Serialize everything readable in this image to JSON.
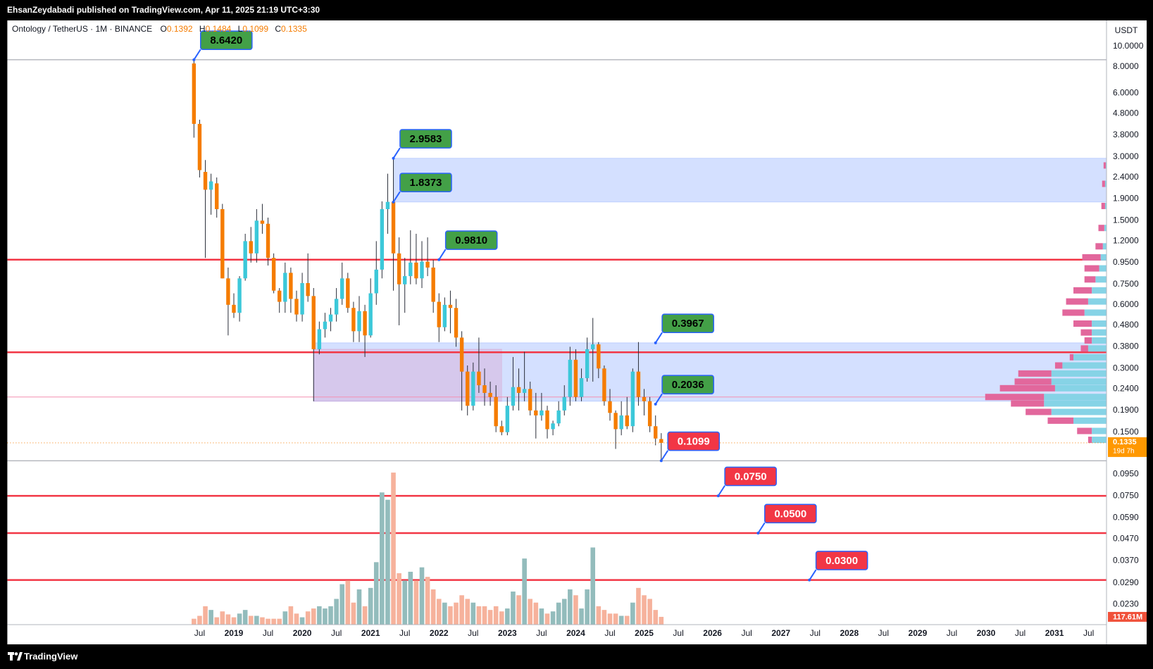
{
  "header": {
    "publisher": "EhsanZeydabadi published on TradingView.com, Apr 11, 2025 21:19 UTC+3:30"
  },
  "footer": {
    "brand": "TradingView"
  },
  "chart_data": {
    "type": "candlestick",
    "title": "Ontology / TetherUS · 1M · BINANCE",
    "ohlc_labels": [
      "O",
      "H",
      "L",
      "C"
    ],
    "currency": "USDT",
    "countdown": "19d 7h",
    "log_scale": true,
    "grid": false,
    "up_color": "#3cc8d9",
    "down_color": "#f57c00",
    "wick_color": "#2a2e39",
    "x": [
      "2018-06",
      "2018-07",
      "2018-08",
      "2018-09",
      "2018-10",
      "2018-11",
      "2018-12",
      "2019-01",
      "2019-02",
      "2019-03",
      "2019-04",
      "2019-05",
      "2019-06",
      "2019-07",
      "2019-08",
      "2019-09",
      "2019-10",
      "2019-11",
      "2019-12",
      "2020-01",
      "2020-02",
      "2020-03",
      "2020-04",
      "2020-05",
      "2020-06",
      "2020-07",
      "2020-08",
      "2020-09",
      "2020-10",
      "2020-11",
      "2020-12",
      "2021-01",
      "2021-02",
      "2021-03",
      "2021-04",
      "2021-05",
      "2021-06",
      "2021-07",
      "2021-08",
      "2021-09",
      "2021-10",
      "2021-11",
      "2021-12",
      "2022-01",
      "2022-02",
      "2022-03",
      "2022-04",
      "2022-05",
      "2022-06",
      "2022-07",
      "2022-08",
      "2022-09",
      "2022-10",
      "2022-11",
      "2022-12",
      "2023-01",
      "2023-02",
      "2023-03",
      "2023-04",
      "2023-05",
      "2023-06",
      "2023-07",
      "2023-08",
      "2023-09",
      "2023-10",
      "2023-11",
      "2023-12",
      "2024-01",
      "2024-02",
      "2024-03",
      "2024-04",
      "2024-05",
      "2024-06",
      "2024-07",
      "2024-08",
      "2024-09",
      "2024-10",
      "2024-11",
      "2024-12",
      "2025-01",
      "2025-02",
      "2025-03",
      "2025-04"
    ],
    "open": [
      8.3,
      4.3,
      2.55,
      2.1,
      2.25,
      1.7,
      0.8,
      0.6,
      0.55,
      0.8,
      1.2,
      1.05,
      1.5,
      1.45,
      1.0,
      0.7,
      0.62,
      0.85,
      0.64,
      0.54,
      0.76,
      0.66,
      0.37,
      0.46,
      0.5,
      0.54,
      0.64,
      0.8,
      0.58,
      0.45,
      0.56,
      0.43,
      0.68,
      0.88,
      1.7,
      1.84,
      1.05,
      0.75,
      0.82,
      0.95,
      0.8,
      0.96,
      0.9,
      0.62,
      0.47,
      0.6,
      0.58,
      0.42,
      0.29,
      0.2,
      0.29,
      0.25,
      0.23,
      0.22,
      0.16,
      0.15,
      0.2,
      0.245,
      0.23,
      0.24,
      0.19,
      0.18,
      0.19,
      0.155,
      0.165,
      0.19,
      0.22,
      0.33,
      0.22,
      0.27,
      0.37,
      0.39,
      0.3,
      0.21,
      0.185,
      0.155,
      0.18,
      0.16,
      0.29,
      0.22,
      0.21,
      0.16,
      0.1392
    ],
    "high": [
      8.642,
      4.5,
      2.9,
      2.5,
      2.4,
      1.8,
      0.9,
      0.68,
      0.82,
      1.3,
      1.4,
      1.7,
      1.8,
      1.55,
      1.05,
      0.72,
      0.95,
      0.9,
      0.7,
      0.85,
      1.05,
      0.72,
      0.5,
      0.55,
      0.58,
      0.72,
      0.95,
      0.85,
      0.62,
      0.66,
      0.6,
      0.8,
      1.2,
      1.85,
      2.5,
      2.9583,
      1.25,
      1.0,
      1.35,
      1.3,
      1.2,
      1.25,
      0.98,
      0.68,
      0.65,
      0.7,
      0.64,
      0.45,
      0.31,
      0.32,
      0.42,
      0.3,
      0.26,
      0.25,
      0.17,
      0.22,
      0.34,
      0.3,
      0.36,
      0.26,
      0.23,
      0.23,
      0.2,
      0.17,
      0.21,
      0.25,
      0.38,
      0.37,
      0.3,
      0.42,
      0.52,
      0.4,
      0.31,
      0.24,
      0.19,
      0.21,
      0.22,
      0.3,
      0.4,
      0.24,
      0.22,
      0.18,
      0.1484
    ],
    "low": [
      3.7,
      2.4,
      1.0,
      1.6,
      1.55,
      0.8,
      0.43,
      0.52,
      0.5,
      0.78,
      0.95,
      0.95,
      1.3,
      0.92,
      0.68,
      0.55,
      0.55,
      0.55,
      0.5,
      0.5,
      0.62,
      0.21,
      0.35,
      0.42,
      0.45,
      0.5,
      0.6,
      0.55,
      0.4,
      0.4,
      0.34,
      0.42,
      0.6,
      0.8,
      1.3,
      0.7,
      0.48,
      0.55,
      0.75,
      0.75,
      0.72,
      0.82,
      0.55,
      0.4,
      0.45,
      0.44,
      0.38,
      0.19,
      0.18,
      0.19,
      0.23,
      0.2,
      0.2,
      0.15,
      0.145,
      0.145,
      0.19,
      0.19,
      0.21,
      0.18,
      0.14,
      0.17,
      0.14,
      0.145,
      0.16,
      0.18,
      0.2,
      0.21,
      0.21,
      0.26,
      0.26,
      0.27,
      0.2,
      0.17,
      0.125,
      0.145,
      0.155,
      0.15,
      0.2,
      0.18,
      0.15,
      0.13,
      0.1099
    ],
    "close": [
      4.3,
      2.6,
      2.1,
      2.3,
      1.7,
      0.8,
      0.6,
      0.55,
      0.8,
      1.2,
      1.05,
      1.5,
      1.45,
      1.0,
      0.7,
      0.62,
      0.85,
      0.64,
      0.54,
      0.76,
      0.66,
      0.37,
      0.46,
      0.5,
      0.54,
      0.64,
      0.8,
      0.58,
      0.45,
      0.56,
      0.43,
      0.68,
      0.88,
      1.7,
      1.84,
      1.05,
      0.75,
      0.82,
      0.95,
      0.8,
      0.96,
      0.9,
      0.62,
      0.47,
      0.6,
      0.58,
      0.42,
      0.29,
      0.2,
      0.29,
      0.25,
      0.23,
      0.22,
      0.16,
      0.15,
      0.2,
      0.245,
      0.23,
      0.24,
      0.19,
      0.18,
      0.19,
      0.155,
      0.165,
      0.19,
      0.22,
      0.33,
      0.22,
      0.27,
      0.37,
      0.39,
      0.3,
      0.21,
      0.185,
      0.155,
      0.18,
      0.16,
      0.29,
      0.22,
      0.21,
      0.16,
      0.14,
      0.1335
    ],
    "volume": [
      89000000,
      133000000,
      278000000,
      222000000,
      111000000,
      200000000,
      155000000,
      111000000,
      167000000,
      222000000,
      133000000,
      133000000,
      111000000,
      89000000,
      89000000,
      89000000,
      200000000,
      278000000,
      167000000,
      111000000,
      200000000,
      244000000,
      278000000,
      244000000,
      278000000,
      389000000,
      611000000,
      666000000,
      333000000,
      533000000,
      278000000,
      555000000,
      944000000,
      1998000000,
      1887000000,
      2298000000,
      777000000,
      666000000,
      799000000,
      666000000,
      866000000,
      722000000,
      533000000,
      389000000,
      333000000,
      278000000,
      333000000,
      444000000,
      389000000,
      333000000,
      278000000,
      278000000,
      222000000,
      278000000,
      200000000,
      244000000,
      500000000,
      444000000,
      999000000,
      389000000,
      333000000,
      244000000,
      167000000,
      200000000,
      333000000,
      389000000,
      533000000,
      444000000,
      244000000,
      533000000,
      1166000000,
      278000000,
      222000000,
      167000000,
      167000000,
      133000000,
      133000000,
      333000000,
      555000000,
      444000000,
      389000000,
      222000000,
      117610000
    ],
    "volume_label": "117.61M",
    "volume_up_color": "#93bcbc",
    "volume_down_color": "#f6b29c",
    "vlim": [
      0,
      2500000000
    ],
    "xlim": [
      "2015-09",
      "2031-10"
    ],
    "ylim": [
      0.01846,
      13.26
    ],
    "xticks": [
      {
        "value": "2018-07",
        "label": "Jul"
      },
      {
        "value": "2019-01",
        "label": "2019"
      },
      {
        "value": "2019-07",
        "label": "Jul"
      },
      {
        "value": "2020-01",
        "label": "2020"
      },
      {
        "value": "2020-07",
        "label": "Jul"
      },
      {
        "value": "2021-01",
        "label": "2021"
      },
      {
        "value": "2021-07",
        "label": "Jul"
      },
      {
        "value": "2022-01",
        "label": "2022"
      },
      {
        "value": "2022-07",
        "label": "Jul"
      },
      {
        "value": "2023-01",
        "label": "2023"
      },
      {
        "value": "2023-07",
        "label": "Jul"
      },
      {
        "value": "2024-01",
        "label": "2024"
      },
      {
        "value": "2024-07",
        "label": "Jul"
      },
      {
        "value": "2025-01",
        "label": "2025"
      },
      {
        "value": "2025-07",
        "label": "Jul"
      },
      {
        "value": "2026-01",
        "label": "2026"
      },
      {
        "value": "2026-07",
        "label": "Jul"
      },
      {
        "value": "2027-01",
        "label": "2027"
      },
      {
        "value": "2027-07",
        "label": "Jul"
      },
      {
        "value": "2028-01",
        "label": "2028"
      },
      {
        "value": "2028-07",
        "label": "Jul"
      },
      {
        "value": "2029-01",
        "label": "2029"
      },
      {
        "value": "2029-07",
        "label": "Jul"
      },
      {
        "value": "2030-01",
        "label": "2030"
      },
      {
        "value": "2030-07",
        "label": "Jul"
      },
      {
        "value": "2031-01",
        "label": "2031"
      },
      {
        "value": "2031-07",
        "label": "Jul"
      }
    ],
    "yticks": [
      {
        "value": 10,
        "label": "10.0000"
      },
      {
        "value": 8,
        "label": "8.0000"
      },
      {
        "value": 6,
        "label": "6.0000"
      },
      {
        "value": 4.8,
        "label": "4.8000"
      },
      {
        "value": 3.8,
        "label": "3.8000"
      },
      {
        "value": 3,
        "label": "3.0000"
      },
      {
        "value": 2.4,
        "label": "2.4000"
      },
      {
        "value": 1.9,
        "label": "1.9000"
      },
      {
        "value": 1.5,
        "label": "1.5000"
      },
      {
        "value": 1.2,
        "label": "1.2000"
      },
      {
        "value": 0.95,
        "label": "0.9500"
      },
      {
        "value": 0.75,
        "label": "0.7500"
      },
      {
        "value": 0.6,
        "label": "0.6000"
      },
      {
        "value": 0.48,
        "label": "0.4800"
      },
      {
        "value": 0.38,
        "label": "0.3800"
      },
      {
        "value": 0.3,
        "label": "0.3000"
      },
      {
        "value": 0.24,
        "label": "0.2400"
      },
      {
        "value": 0.19,
        "label": "0.1900"
      },
      {
        "value": 0.15,
        "label": "0.1500"
      },
      {
        "value": 0.095,
        "label": "0.0950"
      },
      {
        "value": 0.075,
        "label": "0.0750"
      },
      {
        "value": 0.059,
        "label": "0.0590"
      },
      {
        "value": 0.047,
        "label": "0.0470"
      },
      {
        "value": 0.037,
        "label": "0.0370"
      },
      {
        "value": 0.029,
        "label": "0.0290"
      },
      {
        "value": 0.023,
        "label": "0.0230"
      }
    ],
    "zones": [
      {
        "from": "2021-05",
        "top": 2.9583,
        "bottom": 1.8373,
        "color": "rgba(41,98,255,0.2)"
      },
      {
        "from": "2020-03",
        "top": 0.3967,
        "bottom": 0.21,
        "color": "rgba(41,98,255,0.2)"
      },
      {
        "from": "2020-03",
        "to": "2022-12",
        "top": 0.37,
        "bottom": 0.21,
        "color": "rgba(233,30,99,0.12)"
      }
    ],
    "levels": [
      {
        "value": 8.642,
        "color": "#9598a1",
        "width": 1
      },
      {
        "value": 0.981,
        "color": "#f23645",
        "width": 2.5
      },
      {
        "value": 0.358,
        "color": "#f23645",
        "width": 2.5
      },
      {
        "value": 0.22,
        "color": "#f48fb1",
        "width": 1
      },
      {
        "value": 0.1099,
        "color": "#9598a1",
        "width": 1
      },
      {
        "value": 0.075,
        "color": "#f23645",
        "width": 2.5
      },
      {
        "value": 0.05,
        "color": "#f23645",
        "width": 2.5
      },
      {
        "value": 0.03,
        "color": "#f23645",
        "width": 2.5
      }
    ],
    "annotations": [
      {
        "x": "2018-06",
        "value": 8.642,
        "label": "8.6420",
        "color": "#43a047",
        "text_color": "#000000"
      },
      {
        "x": "2021-05",
        "value": 2.9583,
        "label": "2.9583",
        "color": "#43a047",
        "text_color": "#000000"
      },
      {
        "x": "2021-05",
        "value": 1.8373,
        "label": "1.8373",
        "color": "#43a047",
        "text_color": "#000000"
      },
      {
        "x": "2022-01",
        "value": 0.981,
        "label": "0.9810",
        "color": "#43a047",
        "text_color": "#000000"
      },
      {
        "x": "2025-03",
        "value": 0.3967,
        "label": "0.3967",
        "color": "#43a047",
        "text_color": "#000000"
      },
      {
        "x": "2025-03",
        "value": 0.2036,
        "label": "0.2036",
        "color": "#43a047",
        "text_color": "#000000"
      },
      {
        "x": "2025-04",
        "value": 0.1099,
        "label": "0.1099",
        "color": "#f23645",
        "text_color": "#ffffff"
      },
      {
        "x": "2026-02",
        "value": 0.075,
        "label": "0.0750",
        "color": "#f23645",
        "text_color": "#ffffff"
      },
      {
        "x": "2026-09",
        "value": 0.05,
        "label": "0.0500",
        "color": "#f23645",
        "text_color": "#ffffff"
      },
      {
        "x": "2027-06",
        "value": 0.03,
        "label": "0.0300",
        "color": "#f23645",
        "text_color": "#ffffff"
      }
    ],
    "volume_profile_up_color": "#86d3e6",
    "volume_profile_down_color": "#e2679c",
    "volume_profile": [
      {
        "price": 0.138,
        "up": 20,
        "down": 5
      },
      {
        "price": 0.152,
        "up": 20,
        "down": 20
      },
      {
        "price": 0.17,
        "up": 45,
        "down": 35
      },
      {
        "price": 0.187,
        "up": 75,
        "down": 35
      },
      {
        "price": 0.205,
        "up": 85,
        "down": 45
      },
      {
        "price": 0.22,
        "up": 85,
        "down": 80
      },
      {
        "price": 0.242,
        "up": 70,
        "down": 75
      },
      {
        "price": 0.26,
        "up": 75,
        "down": 50
      },
      {
        "price": 0.284,
        "up": 75,
        "down": 45
      },
      {
        "price": 0.31,
        "up": 60,
        "down": 10
      },
      {
        "price": 0.339,
        "up": 45,
        "down": 5
      },
      {
        "price": 0.373,
        "up": 25,
        "down": 10
      },
      {
        "price": 0.407,
        "up": 20,
        "down": 10
      },
      {
        "price": 0.444,
        "up": 20,
        "down": 15
      },
      {
        "price": 0.489,
        "up": 20,
        "down": 25
      },
      {
        "price": 0.551,
        "up": 30,
        "down": 30
      },
      {
        "price": 0.622,
        "up": 25,
        "down": 30
      },
      {
        "price": 0.702,
        "up": 20,
        "down": 25
      },
      {
        "price": 0.791,
        "up": 15,
        "down": 15
      },
      {
        "price": 0.892,
        "up": 10,
        "down": 20
      },
      {
        "price": 1.006,
        "up": 8,
        "down": 25
      },
      {
        "price": 1.134,
        "up": 5,
        "down": 10
      },
      {
        "price": 1.385,
        "up": 3,
        "down": 8
      },
      {
        "price": 1.76,
        "up": 2,
        "down": 5
      },
      {
        "price": 2.239,
        "up": 2,
        "down": 4
      },
      {
        "price": 2.735,
        "up": 1,
        "down": 3
      }
    ]
  }
}
